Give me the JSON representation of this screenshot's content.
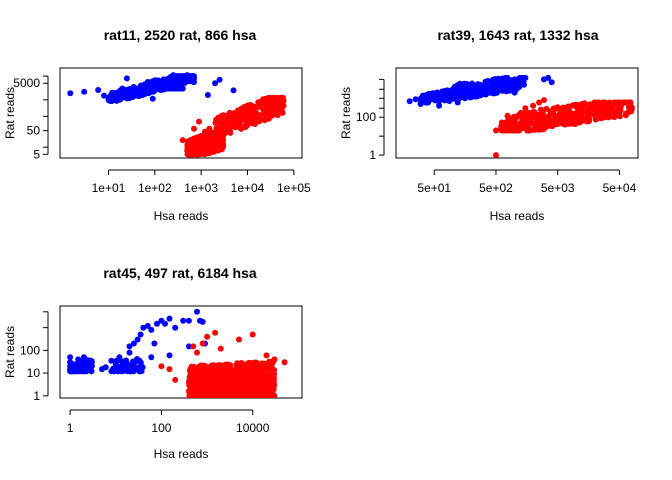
{
  "colors": {
    "rat": "#0000ff",
    "hsa": "#ff0000",
    "axis": "#000000"
  },
  "chart_data": [
    {
      "type": "scatter",
      "title": "rat11, 2520 rat, 866 hsa",
      "xlabel": "Hsa reads",
      "ylabel": "Rat reads",
      "x_scale": "log",
      "y_scale": "log",
      "xlim": [
        0.9,
        150000
      ],
      "ylim": [
        3.5,
        22000
      ],
      "xticks": [
        {
          "v": 10,
          "label": "1e+01"
        },
        {
          "v": 100,
          "label": "1e+02"
        },
        {
          "v": 1000,
          "label": "1e+03"
        },
        {
          "v": 10000,
          "label": "1e+04"
        },
        {
          "v": 100000,
          "label": "1e+05"
        }
      ],
      "yticks": [
        {
          "v": 5,
          "label": "5"
        },
        {
          "v": 50,
          "label": "50"
        },
        {
          "v": 5000,
          "label": "5000"
        }
      ],
      "yminor": [
        10,
        200,
        1000,
        10000
      ],
      "series": [
        {
          "name": "rat",
          "color": "#0000ff",
          "points": [
            [
              1.5,
              1900
            ],
            [
              3,
              2200
            ],
            [
              6,
              2600
            ],
            [
              8,
              1500
            ],
            [
              10,
              1200
            ],
            [
              12,
              2000
            ],
            [
              15,
              1000
            ],
            [
              18,
              2500
            ],
            [
              20,
              3000
            ],
            [
              25,
              1800
            ],
            [
              30,
              1300
            ],
            [
              35,
              3500
            ],
            [
              40,
              2200
            ],
            [
              50,
              4000
            ],
            [
              60,
              1700
            ],
            [
              70,
              3000
            ],
            [
              80,
              5000
            ],
            [
              100,
              2500
            ],
            [
              120,
              6000
            ],
            [
              150,
              4000
            ],
            [
              200,
              7000
            ],
            [
              250,
              5000
            ],
            [
              300,
              9000
            ],
            [
              400,
              7000
            ],
            [
              500,
              11000
            ],
            [
              250,
              11000
            ],
            [
              25,
              8000
            ],
            [
              1400,
              1600
            ],
            [
              2500,
              7000
            ],
            [
              5000,
              2500
            ],
            [
              600,
              10000
            ],
            [
              90,
              1100
            ],
            [
              45,
              1400
            ],
            [
              700,
              8000
            ],
            [
              160,
              3200
            ],
            [
              12,
              1000
            ],
            [
              2000,
              5000
            ]
          ],
          "dense": [
            {
              "x": [
                10,
                400
              ],
              "y": [
                900,
                3000
              ],
              "n": 300,
              "slope": 0.5
            },
            {
              "x": [
                60,
                700
              ],
              "y": [
                2500,
                10000
              ],
              "n": 150,
              "slope": 0.45
            }
          ]
        },
        {
          "name": "hsa",
          "color": "#ff0000",
          "points": [
            [
              500,
              7
            ],
            [
              600,
              10
            ],
            [
              700,
              8
            ],
            [
              800,
              15
            ],
            [
              1000,
              30
            ],
            [
              1500,
              60
            ],
            [
              2000,
              40
            ],
            [
              3000,
              100
            ],
            [
              5000,
              150
            ],
            [
              8000,
              200
            ],
            [
              10000,
              300
            ],
            [
              15000,
              500
            ],
            [
              20000,
              700
            ],
            [
              30000,
              800
            ],
            [
              50000,
              1200
            ],
            [
              60000,
              900
            ],
            [
              700,
              60
            ],
            [
              900,
              120
            ],
            [
              1200,
              45
            ],
            [
              400,
              20
            ],
            [
              25000,
              350
            ],
            [
              40000,
              1000
            ]
          ],
          "dense": [
            {
              "x": [
                500,
                3000
              ],
              "y": [
                5,
                80
              ],
              "n": 260,
              "slope": 0.6
            },
            {
              "x": [
                2000,
                60000
              ],
              "y": [
                40,
                1200
              ],
              "n": 280,
              "slope": 0.75
            }
          ]
        }
      ]
    },
    {
      "type": "scatter",
      "title": "rat39, 1643 rat, 1332 hsa",
      "xlabel": "Hsa reads",
      "ylabel": "Rat reads",
      "x_scale": "log",
      "y_scale": "log",
      "xlim": [
        12,
        100000
      ],
      "ylim": [
        0.7,
        40000
      ],
      "xticks": [
        {
          "v": 50,
          "label": "5e+01"
        },
        {
          "v": 500,
          "label": "5e+02"
        },
        {
          "v": 5000,
          "label": "5e+03"
        },
        {
          "v": 50000,
          "label": "5e+04"
        }
      ],
      "yticks": [
        {
          "v": 1,
          "label": "1"
        },
        {
          "v": 100,
          "label": "100"
        }
      ],
      "yminor": [
        10,
        300,
        1000,
        3000,
        10000
      ],
      "series": [
        {
          "name": "rat",
          "color": "#0000ff",
          "points": [
            [
              20,
              700
            ],
            [
              25,
              900
            ],
            [
              30,
              500
            ],
            [
              40,
              800
            ],
            [
              50,
              1200
            ],
            [
              60,
              700
            ],
            [
              80,
              1500
            ],
            [
              100,
              1000
            ],
            [
              150,
              2000
            ],
            [
              200,
              2500
            ],
            [
              300,
              3000
            ],
            [
              400,
              4000
            ],
            [
              600,
              5000
            ],
            [
              800,
              7000
            ],
            [
              1000,
              10000
            ],
            [
              1500,
              12000
            ],
            [
              3000,
              10000
            ],
            [
              4000,
              7000
            ],
            [
              3500,
              12000
            ],
            [
              1000,
              2000
            ],
            [
              60,
              400
            ],
            [
              120,
              600
            ]
          ],
          "dense": [
            {
              "x": [
                30,
                1200
              ],
              "y": [
                600,
                4000
              ],
              "n": 320,
              "slope": 0.55
            },
            {
              "x": [
                100,
                1500
              ],
              "y": [
                2000,
                12000
              ],
              "n": 140,
              "slope": 0.45
            }
          ]
        },
        {
          "name": "hsa",
          "color": "#ff0000",
          "points": [
            [
              500,
              1
            ],
            [
              500,
              20
            ],
            [
              700,
              30
            ],
            [
              1000,
              40
            ],
            [
              1500,
              300
            ],
            [
              2000,
              400
            ],
            [
              3000,
              60
            ],
            [
              5000,
              80
            ],
            [
              8000,
              100
            ],
            [
              10000,
              150
            ],
            [
              20000,
              250
            ],
            [
              40000,
              400
            ],
            [
              60000,
              600
            ],
            [
              3000,
              800
            ],
            [
              2500,
              600
            ],
            [
              900,
              45
            ],
            [
              6000,
              120
            ],
            [
              15000,
              200
            ]
          ],
          "dense": [
            {
              "x": [
                600,
                80000
              ],
              "y": [
                20,
                600
              ],
              "n": 360,
              "slope": 0.55
            }
          ]
        }
      ]
    },
    {
      "type": "scatter",
      "title": "rat45, 497 rat, 6184 hsa",
      "xlabel": "Hsa reads",
      "ylabel": "Rat reads",
      "x_scale": "log",
      "y_scale": "log",
      "xlim": [
        0.6,
        120000
      ],
      "ylim": [
        0.8,
        9000
      ],
      "xticks": [
        {
          "v": 1,
          "label": "1"
        },
        {
          "v": 100,
          "label": "100"
        },
        {
          "v": 10000,
          "label": "10000"
        }
      ],
      "yticks": [
        {
          "v": 1,
          "label": "1"
        },
        {
          "v": 10,
          "label": "10"
        },
        {
          "v": 100,
          "label": "100"
        }
      ],
      "yminor": [
        1000,
        5000
      ],
      "series": [
        {
          "name": "rat",
          "color": "#0000ff",
          "points": [
            [
              1,
              50
            ],
            [
              1,
              30
            ],
            [
              1,
              20
            ],
            [
              1,
              15
            ],
            [
              1.5,
              40
            ],
            [
              2,
              50
            ],
            [
              2,
              25
            ],
            [
              3,
              30
            ],
            [
              3,
              20
            ],
            [
              5,
              15
            ],
            [
              6,
              18
            ],
            [
              8,
              35
            ],
            [
              10,
              25
            ],
            [
              12,
              50
            ],
            [
              15,
              30
            ],
            [
              20,
              80
            ],
            [
              25,
              200
            ],
            [
              30,
              300
            ],
            [
              35,
              500
            ],
            [
              40,
              1000
            ],
            [
              50,
              1200
            ],
            [
              60,
              800
            ],
            [
              80,
              1500
            ],
            [
              100,
              2000
            ],
            [
              120,
              1500
            ],
            [
              150,
              2500
            ],
            [
              200,
              1000
            ],
            [
              300,
              2000
            ],
            [
              400,
              2000
            ],
            [
              600,
              5000
            ],
            [
              700,
              2000
            ],
            [
              800,
              1800
            ],
            [
              70,
              200
            ],
            [
              20,
              150
            ],
            [
              150,
              60
            ],
            [
              900,
              200
            ],
            [
              30,
              15
            ],
            [
              8,
              12
            ],
            [
              1.2,
              12
            ],
            [
              2.5,
              14
            ],
            [
              400,
              150
            ],
            [
              60,
              50
            ]
          ],
          "dense": [
            {
              "x": [
                1,
                3
              ],
              "y": [
                12,
                60
              ],
              "n": 60,
              "slope": 0
            },
            {
              "x": [
                8,
                40
              ],
              "y": [
                12,
                60
              ],
              "n": 60,
              "slope": 0.2
            }
          ]
        },
        {
          "name": "hsa",
          "color": "#ff0000",
          "points": [
            [
              100,
              20
            ],
            [
              150,
              15
            ],
            [
              500,
              150
            ],
            [
              800,
              200
            ],
            [
              1000,
              400
            ],
            [
              2000,
              120
            ],
            [
              5000,
              300
            ],
            [
              10000,
              500
            ],
            [
              20000,
              60
            ],
            [
              50000,
              30
            ],
            [
              30000,
              40
            ],
            [
              3000,
              1
            ],
            [
              800,
              1
            ],
            [
              600,
              80
            ],
            [
              200,
              5
            ],
            [
              1500,
              600
            ]
          ],
          "dense": [
            {
              "x": [
                400,
                30000
              ],
              "y": [
                1,
                100
              ],
              "n": 900,
              "slope": 0.1
            }
          ]
        }
      ]
    }
  ]
}
